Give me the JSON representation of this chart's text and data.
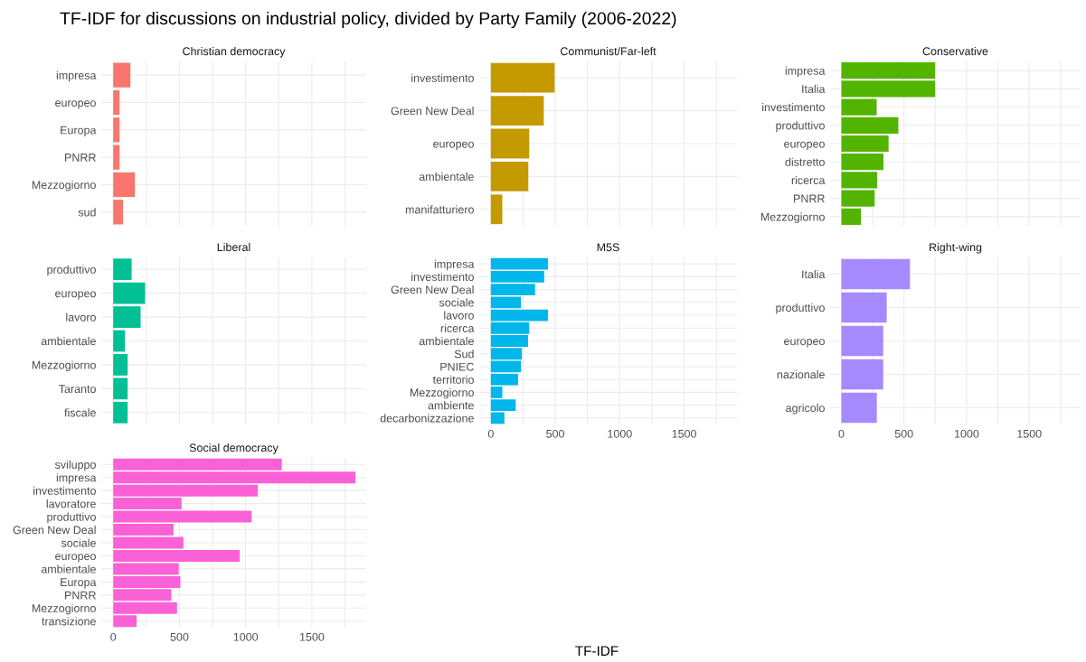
{
  "chart_data": [
    {
      "type": "bar",
      "orientation": "horizontal",
      "title": "Christian democracy",
      "annotations": [
        "TF-IDF for discussions on industrial policy, divided by Party Family (2006-2022)",
        "TF-IDF"
      ],
      "categories": [
        "impresa",
        "europeo",
        "Europa",
        "PNRR",
        "Mezzogiorno",
        "sud"
      ],
      "values": [
        130,
        48,
        48,
        48,
        164,
        75
      ],
      "color": "#f8766d",
      "xlim": [
        -90,
        1910
      ],
      "xticks": [
        0,
        {
          "value": 250,
          "label": null
        },
        500,
        {
          "value": 750,
          "label": null
        },
        1000,
        {
          "value": 1250,
          "label": null
        },
        1500,
        {
          "value": 1750,
          "label": null
        }
      ],
      "tick_labels": "y",
      "grid": true
    },
    {
      "type": "bar",
      "orientation": "horizontal",
      "title": "Communist/Far-left",
      "categories": [
        "investimento",
        "Green New Deal",
        "europeo",
        "ambientale",
        "manifatturiero"
      ],
      "values": [
        495,
        411,
        298,
        291,
        89
      ],
      "color": "#c49a00",
      "xlim": [
        -90,
        1910
      ],
      "xticks": [
        0,
        {
          "value": 250,
          "label": null
        },
        500,
        {
          "value": 750,
          "label": null
        },
        1000,
        {
          "value": 1250,
          "label": null
        },
        1500,
        {
          "value": 1750,
          "label": null
        }
      ],
      "tick_labels": "y",
      "grid": true
    },
    {
      "type": "bar",
      "orientation": "horizontal",
      "title": "Conservative",
      "categories": [
        "impresa",
        "Italia",
        "investimento",
        "produttivo",
        "europeo",
        "distretto",
        "ricerca",
        "PNRR",
        "Mezzogiorno"
      ],
      "values": [
        748,
        748,
        282,
        455,
        377,
        336,
        286,
        266,
        157
      ],
      "color": "#53b400",
      "xlim": [
        -90,
        1910
      ],
      "xticks": [
        0,
        {
          "value": 250,
          "label": null
        },
        500,
        {
          "value": 750,
          "label": null
        },
        1000,
        {
          "value": 1250,
          "label": null
        },
        1500,
        {
          "value": 1750,
          "label": null
        }
      ],
      "tick_labels": "y",
      "grid": true
    },
    {
      "type": "bar",
      "orientation": "horizontal",
      "title": "Liberal",
      "categories": [
        "produttivo",
        "europeo",
        "lavoro",
        "ambientale",
        "Mezzogiorno",
        "Taranto",
        "fiscale"
      ],
      "values": [
        139,
        241,
        207,
        89,
        109,
        109,
        109
      ],
      "color": "#00c094",
      "xlim": [
        -90,
        1910
      ],
      "xticks": [
        0,
        {
          "value": 250,
          "label": null
        },
        500,
        {
          "value": 750,
          "label": null
        },
        1000,
        {
          "value": 1250,
          "label": null
        },
        1500,
        {
          "value": 1750,
          "label": null
        }
      ],
      "tick_labels": "y",
      "grid": true
    },
    {
      "type": "bar",
      "orientation": "horizontal",
      "title": "M5S",
      "categories": [
        "impresa",
        "investimento",
        "Green New Deal",
        "sociale",
        "lavoro",
        "ricerca",
        "ambientale",
        "Sud",
        "PNIEC",
        "territorio",
        "Mezzogiorno",
        "ambiente",
        "decarbonizzazione"
      ],
      "values": [
        443,
        414,
        343,
        234,
        443,
        298,
        289,
        241,
        234,
        211,
        89,
        193,
        105
      ],
      "color": "#00b6eb",
      "xlim": [
        -90,
        1910
      ],
      "xticks": [
        0,
        {
          "value": 250,
          "label": null
        },
        500,
        {
          "value": 750,
          "label": null
        },
        1000,
        {
          "value": 1250,
          "label": null
        },
        1500,
        {
          "value": 1750,
          "label": null
        }
      ],
      "grid": true
    },
    {
      "type": "bar",
      "orientation": "horizontal",
      "title": "Right-wing",
      "categories": [
        "Italia",
        "produttivo",
        "europeo",
        "nazionale",
        "agricolo"
      ],
      "values": [
        548,
        362,
        334,
        334,
        283
      ],
      "color": "#a58aff",
      "xlim": [
        -90,
        1910
      ],
      "xticks": [
        0,
        {
          "value": 250,
          "label": null
        },
        500,
        {
          "value": 750,
          "label": null
        },
        1000,
        {
          "value": 1250,
          "label": null
        },
        1500,
        {
          "value": 1750,
          "label": null
        }
      ],
      "grid": true
    },
    {
      "type": "bar",
      "orientation": "horizontal",
      "title": "Social democracy",
      "categories": [
        "sviluppo",
        "impresa",
        "investimento",
        "lavoratore",
        "produttivo",
        "Green New Deal",
        "sociale",
        "europeo",
        "ambientale",
        "Europa",
        "PNRR",
        "Mezzogiorno",
        "transizione"
      ],
      "values": [
        1273,
        1829,
        1091,
        516,
        1045,
        455,
        530,
        955,
        495,
        507,
        439,
        482,
        177
      ],
      "color": "#fb61d7",
      "xlim": [
        -90,
        1910
      ],
      "xticks": [
        0,
        {
          "value": 250,
          "label": null
        },
        500,
        {
          "value": 750,
          "label": null
        },
        1000,
        {
          "value": 1250,
          "label": null
        },
        1500,
        {
          "value": 1750,
          "label": null
        }
      ],
      "grid": true
    }
  ]
}
